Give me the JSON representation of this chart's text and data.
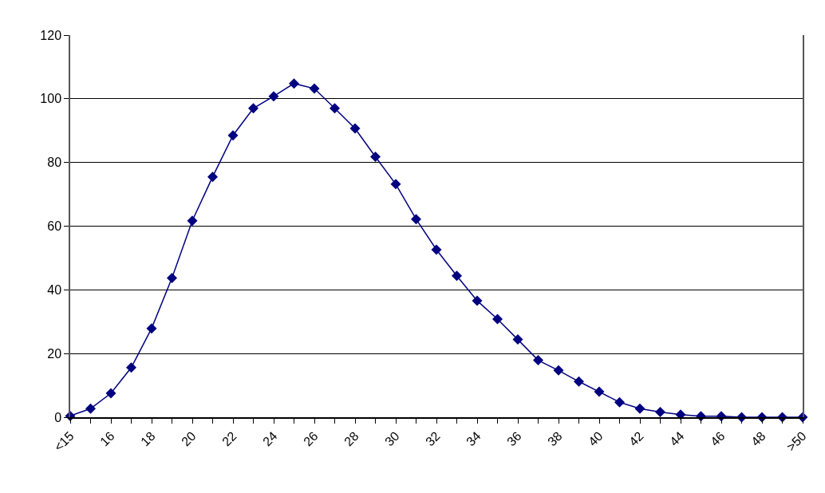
{
  "chart_data": {
    "type": "line",
    "categories": [
      "<15",
      null,
      "16",
      null,
      "18",
      null,
      "20",
      null,
      "22",
      null,
      "24",
      null,
      "26",
      null,
      "28",
      null,
      "30",
      null,
      "32",
      null,
      "34",
      null,
      "36",
      null,
      "38",
      null,
      "40",
      null,
      "42",
      null,
      "44",
      null,
      "46",
      null,
      "48",
      null,
      ">50"
    ],
    "series": [
      {
        "color": "#000080",
        "values": [
          0.4,
          2.7,
          7.5,
          15.6,
          27.9,
          43.7,
          61.7,
          75.5,
          88.5,
          97,
          100.8,
          104.8,
          103.2,
          97,
          90.7,
          81.8,
          73.2,
          62.2,
          52.6,
          44.4,
          36.6,
          30.8,
          24.4,
          17.9,
          14.7,
          11.2,
          8.0,
          4.7,
          2.7,
          1.6,
          0.8,
          0.3,
          0.3,
          0,
          0,
          0,
          0
        ]
      }
    ],
    "ylim": [
      0,
      120
    ],
    "yticks": [
      0,
      20,
      40,
      60,
      80,
      100,
      120
    ],
    "grid": "y",
    "marker": "diamond",
    "line_style": "solid"
  }
}
